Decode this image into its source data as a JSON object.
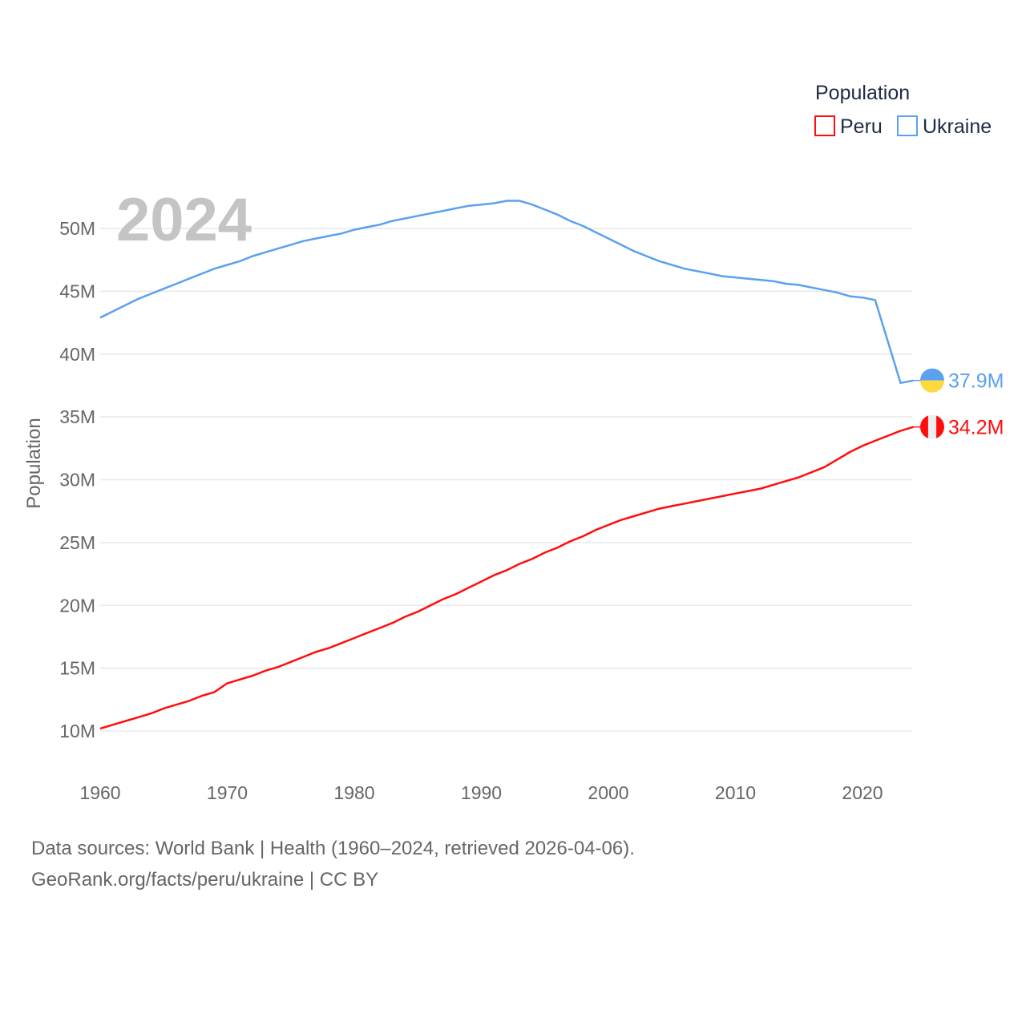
{
  "chart_data": {
    "type": "line",
    "title": "",
    "xlabel": "",
    "ylabel": "Population",
    "year_watermark": "2024",
    "xlim": [
      1960,
      2024
    ],
    "ylim": [
      10,
      53
    ],
    "y_unit": "M",
    "grid": true,
    "legend": {
      "title": "Population",
      "placement": "top-right"
    },
    "x_ticks": [
      "1960",
      "1970",
      "1980",
      "1990",
      "2000",
      "2010",
      "2020"
    ],
    "y_ticks": [
      "10M",
      "15M",
      "20M",
      "25M",
      "30M",
      "35M",
      "40M",
      "45M",
      "50M"
    ],
    "x_start": 1960,
    "series": [
      {
        "name": "Peru",
        "color": "#ff0d0d",
        "end_label": "34.2M",
        "flag": "peru",
        "values": [
          10.2,
          10.5,
          10.8,
          11.1,
          11.4,
          11.8,
          12.1,
          12.4,
          12.8,
          13.1,
          13.8,
          14.1,
          14.4,
          14.8,
          15.1,
          15.5,
          15.9,
          16.3,
          16.6,
          17.0,
          17.4,
          17.8,
          18.2,
          18.6,
          19.1,
          19.5,
          20.0,
          20.5,
          20.9,
          21.4,
          21.9,
          22.4,
          22.8,
          23.3,
          23.7,
          24.2,
          24.6,
          25.1,
          25.5,
          26.0,
          26.4,
          26.8,
          27.1,
          27.4,
          27.7,
          27.9,
          28.1,
          28.3,
          28.5,
          28.7,
          28.9,
          29.1,
          29.3,
          29.6,
          29.9,
          30.2,
          30.6,
          31.0,
          31.6,
          32.2,
          32.7,
          33.1,
          33.5,
          33.9,
          34.2
        ]
      },
      {
        "name": "Ukraine",
        "color": "#5aa1ee",
        "end_label": "37.9M",
        "flag": "ukraine",
        "values": [
          42.9,
          43.4,
          43.9,
          44.4,
          44.8,
          45.2,
          45.6,
          46.0,
          46.4,
          46.8,
          47.1,
          47.4,
          47.8,
          48.1,
          48.4,
          48.7,
          49.0,
          49.2,
          49.4,
          49.6,
          49.9,
          50.1,
          50.3,
          50.6,
          50.8,
          51.0,
          51.2,
          51.4,
          51.6,
          51.8,
          51.9,
          52.0,
          52.2,
          52.2,
          51.9,
          51.5,
          51.1,
          50.6,
          50.2,
          49.7,
          49.2,
          48.7,
          48.2,
          47.8,
          47.4,
          47.1,
          46.8,
          46.6,
          46.4,
          46.2,
          46.1,
          46.0,
          45.9,
          45.8,
          45.6,
          45.5,
          45.3,
          45.1,
          44.9,
          44.6,
          44.5,
          44.3,
          41.0,
          37.7,
          37.9
        ]
      }
    ]
  },
  "footer": {
    "line1": "Data sources: World Bank | Health (1960–2024, retrieved 2026-04-06).",
    "line2": "GeoRank.org/facts/peru/ukraine | CC BY"
  }
}
